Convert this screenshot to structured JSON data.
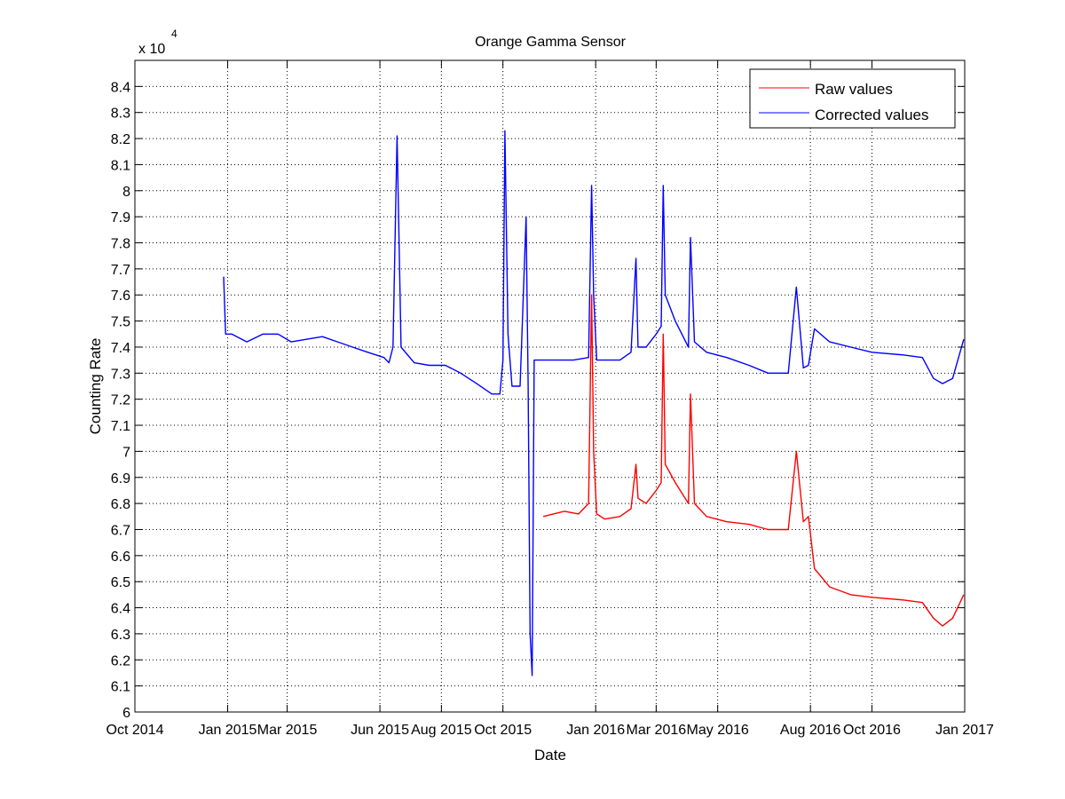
{
  "chart_data": {
    "type": "line",
    "title": "Orange Gamma Sensor",
    "xlabel": "Date",
    "ylabel": "Counting Rate",
    "y_multiplier_label": "x 10",
    "y_multiplier_exponent": "4",
    "grid": true,
    "legend_position": "top-right",
    "xlim": [
      "2014-10-01",
      "2017-01-01"
    ],
    "ylim": [
      6.0,
      8.5
    ],
    "x_ticks": [
      {
        "date": "2014-10-01",
        "label": "Oct 2014"
      },
      {
        "date": "2015-01-01",
        "label": "Jan 2015"
      },
      {
        "date": "2015-03-01",
        "label": "Mar 2015"
      },
      {
        "date": "2015-06-01",
        "label": "Jun 2015"
      },
      {
        "date": "2015-08-01",
        "label": "Aug 2015"
      },
      {
        "date": "2015-10-01",
        "label": "Oct 2015"
      },
      {
        "date": "2016-01-01",
        "label": "Jan 2016"
      },
      {
        "date": "2016-03-01",
        "label": "Mar 2016"
      },
      {
        "date": "2016-05-01",
        "label": "May 2016"
      },
      {
        "date": "2016-08-01",
        "label": "Aug 2016"
      },
      {
        "date": "2016-10-01",
        "label": "Oct 2016"
      },
      {
        "date": "2017-01-01",
        "label": "Jan 2017"
      }
    ],
    "y_ticks": [
      "6",
      "6.1",
      "6.2",
      "6.3",
      "6.4",
      "6.5",
      "6.6",
      "6.7",
      "6.8",
      "6.9",
      "7",
      "7.1",
      "7.2",
      "7.3",
      "7.4",
      "7.5",
      "7.6",
      "7.7",
      "7.8",
      "7.9",
      "8",
      "8.1",
      "8.2",
      "8.3",
      "8.4"
    ],
    "series": [
      {
        "name": "Raw values",
        "color": "#ff0000",
        "x": [
          "2015-11-10",
          "2015-11-20",
          "2015-12-01",
          "2015-12-15",
          "2015-12-25",
          "2015-12-28",
          "2015-12-30",
          "2016-01-02",
          "2016-01-10",
          "2016-01-25",
          "2016-02-05",
          "2016-02-10",
          "2016-02-12",
          "2016-02-20",
          "2016-03-01",
          "2016-03-06",
          "2016-03-08",
          "2016-03-10",
          "2016-03-20",
          "2016-04-02",
          "2016-04-04",
          "2016-04-08",
          "2016-04-20",
          "2016-05-10",
          "2016-06-01",
          "2016-06-20",
          "2016-07-10",
          "2016-07-18",
          "2016-07-25",
          "2016-07-30",
          "2016-08-05",
          "2016-08-20",
          "2016-09-10",
          "2016-10-01",
          "2016-11-01",
          "2016-11-20",
          "2016-12-01",
          "2016-12-10",
          "2016-12-20",
          "2016-12-31"
        ],
        "values": [
          6.75,
          6.76,
          6.77,
          6.76,
          6.8,
          7.6,
          7.0,
          6.76,
          6.74,
          6.75,
          6.78,
          6.95,
          6.82,
          6.8,
          6.85,
          6.88,
          7.45,
          6.95,
          6.88,
          6.8,
          7.22,
          6.8,
          6.75,
          6.73,
          6.72,
          6.7,
          6.7,
          7.0,
          6.73,
          6.75,
          6.55,
          6.48,
          6.45,
          6.44,
          6.43,
          6.42,
          6.36,
          6.33,
          6.36,
          6.45
        ]
      },
      {
        "name": "Corrected values",
        "color": "#0000ff",
        "x": [
          "2014-12-28",
          "2014-12-30",
          "2015-01-05",
          "2015-01-20",
          "2015-02-05",
          "2015-02-20",
          "2015-03-05",
          "2015-03-20",
          "2015-04-05",
          "2015-04-20",
          "2015-05-05",
          "2015-05-20",
          "2015-06-05",
          "2015-06-10",
          "2015-06-14",
          "2015-06-18",
          "2015-06-22",
          "2015-07-05",
          "2015-07-20",
          "2015-08-05",
          "2015-08-20",
          "2015-09-05",
          "2015-09-20",
          "2015-09-28",
          "2015-10-01",
          "2015-10-03",
          "2015-10-06",
          "2015-10-10",
          "2015-10-18",
          "2015-10-24",
          "2015-10-26",
          "2015-10-28",
          "2015-10-30",
          "2015-11-01",
          "2015-11-10",
          "2015-11-25",
          "2015-12-10",
          "2015-12-25",
          "2015-12-28",
          "2015-12-30",
          "2016-01-02",
          "2016-01-10",
          "2016-01-25",
          "2016-02-05",
          "2016-02-10",
          "2016-02-12",
          "2016-02-20",
          "2016-03-01",
          "2016-03-06",
          "2016-03-08",
          "2016-03-10",
          "2016-03-20",
          "2016-04-02",
          "2016-04-04",
          "2016-04-08",
          "2016-04-20",
          "2016-05-10",
          "2016-06-01",
          "2016-06-20",
          "2016-07-10",
          "2016-07-18",
          "2016-07-25",
          "2016-07-30",
          "2016-08-05",
          "2016-08-20",
          "2016-09-10",
          "2016-10-01",
          "2016-11-01",
          "2016-11-20",
          "2016-12-01",
          "2016-12-10",
          "2016-12-20",
          "2016-12-31"
        ],
        "values": [
          7.67,
          7.45,
          7.45,
          7.42,
          7.45,
          7.45,
          7.42,
          7.43,
          7.44,
          7.42,
          7.4,
          7.38,
          7.36,
          7.34,
          7.4,
          8.21,
          7.4,
          7.34,
          7.33,
          7.33,
          7.3,
          7.26,
          7.22,
          7.22,
          7.35,
          8.23,
          7.45,
          7.25,
          7.25,
          7.9,
          7.25,
          6.3,
          6.14,
          7.35,
          7.35,
          7.35,
          7.35,
          7.36,
          8.02,
          7.6,
          7.35,
          7.35,
          7.35,
          7.38,
          7.74,
          7.4,
          7.4,
          7.45,
          7.48,
          8.02,
          7.6,
          7.5,
          7.4,
          7.82,
          7.42,
          7.38,
          7.36,
          7.33,
          7.3,
          7.3,
          7.63,
          7.32,
          7.33,
          7.47,
          7.42,
          7.4,
          7.38,
          7.37,
          7.36,
          7.28,
          7.26,
          7.28,
          7.43
        ]
      }
    ]
  }
}
